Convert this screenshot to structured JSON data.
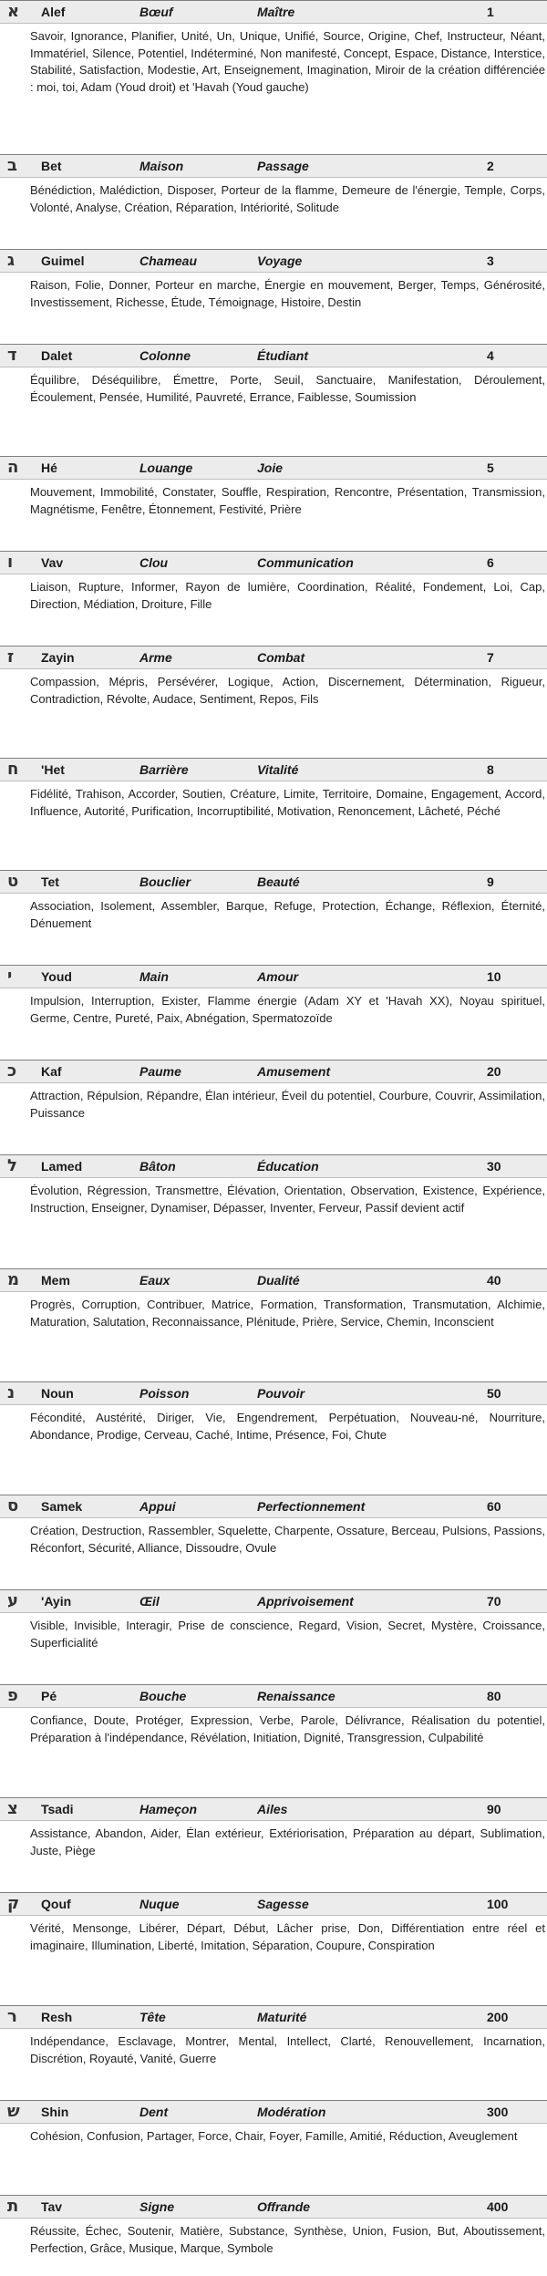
{
  "letters": [
    {
      "glyph": "א",
      "name": "Alef",
      "symbol": "Bœuf",
      "concept": "Maître",
      "value": "1",
      "words": "Savoir, Ignorance, Planifier, Unité, Un, Unique, Unifié, Source, Origine, Chef, Instructeur, Néant, Immatériel, Silence, Potentiel, Indéterminé, Non manifesté, Concept, Espace, Distance, Interstice, Stabilité, Satisfaction, Modestie, Art, Enseignement, Imagination, Miroir de la création différenciée : moi, toi, Adam (Youd droit) et 'Havah (Youd gauche)"
    },
    {
      "glyph": "ב",
      "name": "Bet",
      "symbol": "Maison",
      "concept": "Passage",
      "value": "2",
      "words": "Bénédiction, Malédiction, Disposer, Porteur de la flamme, Demeure de l'énergie, Temple, Corps, Volonté, Analyse, Création, Réparation, Intériorité, Solitude"
    },
    {
      "glyph": "ג",
      "name": "Guimel",
      "symbol": "Chameau",
      "concept": "Voyage",
      "value": "3",
      "words": "Raison, Folie, Donner, Porteur en marche, Énergie en mouvement, Berger, Temps, Générosité, Investissement, Richesse, Étude, Témoignage, Histoire, Destin"
    },
    {
      "glyph": "ד",
      "name": "Dalet",
      "symbol": "Colonne",
      "concept": "Étudiant",
      "value": "4",
      "words": "Équilibre, Déséquilibre, Émettre, Porte, Seuil, Sanctuaire, Manifestation, Déroulement, Écoulement, Pensée, Humilité, Pauvreté, Errance, Faiblesse, Soumission"
    },
    {
      "glyph": "ה",
      "name": "Hé",
      "symbol": "Louange",
      "concept": "Joie",
      "value": "5",
      "words": "Mouvement, Immobilité, Constater, Souffle, Respiration, Rencontre, Présentation, Transmission, Magnétisme, Fenêtre, Étonnement, Festivité, Prière"
    },
    {
      "glyph": "ו",
      "name": "Vav",
      "symbol": "Clou",
      "concept": "Communication",
      "value": "6",
      "words": "Liaison, Rupture, Informer, Rayon de lumière, Coordination, Réalité, Fondement, Loi, Cap, Direction, Médiation, Droiture, Fille"
    },
    {
      "glyph": "ז",
      "name": "Zayin",
      "symbol": "Arme",
      "concept": "Combat",
      "value": "7",
      "words": "Compassion, Mépris, Persévérer, Logique, Action, Discernement, Détermination, Rigueur, Contradiction, Révolte, Audace, Sentiment, Repos, Fils"
    },
    {
      "glyph": "ח",
      "name": "'Het",
      "symbol": "Barrière",
      "concept": "Vitalité",
      "value": "8",
      "words": "Fidélité, Trahison, Accorder, Soutien, Créature, Limite, Territoire, Domaine, Engagement, Accord, Influence, Autorité, Purification, Incorruptibilité, Motivation, Renoncement, Lâcheté, Péché"
    },
    {
      "glyph": "ט",
      "name": "Tet",
      "symbol": "Bouclier",
      "concept": "Beauté",
      "value": "9",
      "words": "Association, Isolement, Assembler, Barque, Refuge, Protection, Échange, Réflexion, Éternité, Dénuement"
    },
    {
      "glyph": "י",
      "name": "Youd",
      "symbol": "Main",
      "concept": "Amour",
      "value": "10",
      "words": "Impulsion, Interruption, Exister, Flamme énergie (Adam XY et 'Havah XX), Noyau spirituel, Germe, Centre, Pureté, Paix, Abnégation, Spermatozoïde"
    },
    {
      "glyph": "כ",
      "name": "Kaf",
      "symbol": "Paume",
      "concept": "Amusement",
      "value": "20",
      "words": "Attraction, Répulsion, Répandre, Élan intérieur, Éveil du potentiel, Courbure, Couvrir, Assimilation, Puissance"
    },
    {
      "glyph": "ל",
      "name": "Lamed",
      "symbol": "Bâton",
      "concept": "Éducation",
      "value": "30",
      "words": "Évolution, Régression, Transmettre, Élévation, Orientation, Observation, Existence, Expérience, Instruction, Enseigner, Dynamiser, Dépasser, Inventer, Ferveur, Passif devient actif"
    },
    {
      "glyph": "מ",
      "name": "Mem",
      "symbol": "Eaux",
      "concept": "Dualité",
      "value": "40",
      "words": "Progrès, Corruption, Contribuer, Matrice, Formation, Transformation, Transmutation, Alchimie, Maturation, Salutation, Reconnaissance, Plénitude, Prière, Service, Chemin, Inconscient"
    },
    {
      "glyph": "נ",
      "name": "Noun",
      "symbol": "Poisson",
      "concept": "Pouvoir",
      "value": "50",
      "words": "Fécondité, Austérité, Diriger, Vie, Engendrement, Perpétuation, Nouveau-né, Nourriture, Abondance, Prodige, Cerveau, Caché, Intime, Présence, Foi, Chute"
    },
    {
      "glyph": "ס",
      "name": "Samek",
      "symbol": "Appui",
      "concept": "Perfectionnement",
      "value": "60",
      "words": "Création, Destruction, Rassembler, Squelette, Charpente, Ossature, Berceau, Pulsions, Passions, Réconfort, Sécurité, Alliance, Dissoudre, Ovule"
    },
    {
      "glyph": "ע",
      "name": "'Ayin",
      "symbol": "Œil",
      "concept": "Apprivoisement",
      "value": "70",
      "words": "Visible, Invisible, Interagir, Prise de conscience, Regard, Vision, Secret, Mystère, Croissance, Superficialité"
    },
    {
      "glyph": "פ",
      "name": "Pé",
      "symbol": "Bouche",
      "concept": "Renaissance",
      "value": "80",
      "words": "Confiance, Doute, Protéger, Expression, Verbe, Parole, Délivrance, Réalisation du potentiel, Préparation à l'indépendance, Révélation, Initiation, Dignité, Transgression, Culpabilité"
    },
    {
      "glyph": "צ",
      "name": "Tsadi",
      "symbol": "Hameçon",
      "concept": "Ailes",
      "value": "90",
      "words": "Assistance, Abandon, Aider, Élan extérieur, Extériorisation, Préparation au départ, Sublimation, Juste, Piège"
    },
    {
      "glyph": "ק",
      "name": "Qouf",
      "symbol": "Nuque",
      "concept": "Sagesse",
      "value": "100",
      "words": "Vérité, Mensonge, Libérer, Départ, Début, Lâcher prise, Don, Différentiation entre réel et imaginaire, Illumination, Liberté, Imitation, Séparation, Coupure, Conspiration"
    },
    {
      "glyph": "ר",
      "name": "Resh",
      "symbol": "Tête",
      "concept": "Maturité",
      "value": "200",
      "words": "Indépendance, Esclavage, Montrer, Mental, Intellect, Clarté, Renouvellement, Incarnation, Discrétion, Royauté, Vanité, Guerre"
    },
    {
      "glyph": "ש",
      "name": "Shin",
      "symbol": "Dent",
      "concept": "Modération",
      "value": "300",
      "words": "Cohésion, Confusion, Partager, Force, Chair, Foyer, Famille, Amitié, Réduction, Aveuglement"
    },
    {
      "glyph": "ת",
      "name": "Tav",
      "symbol": "Signe",
      "concept": "Offrande",
      "value": "400",
      "words": "Réussite, Échec, Soutenir, Matière, Substance, Synthèse, Union, Fusion, But, Aboutissement, Perfection, Grâce, Musique, Marque, Symbole"
    }
  ]
}
